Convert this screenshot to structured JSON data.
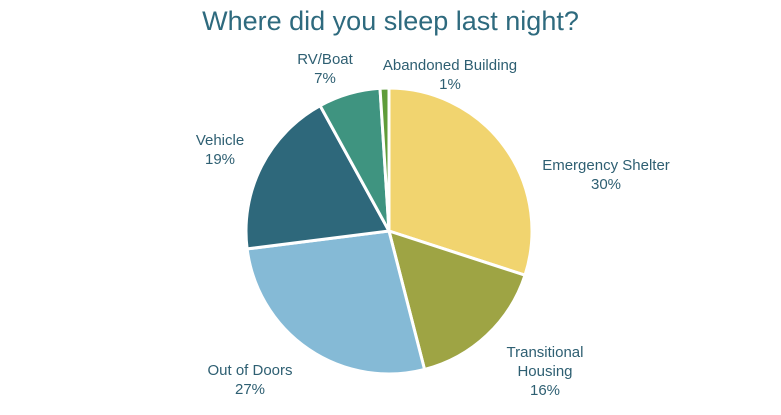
{
  "chart_data": {
    "type": "pie",
    "title": "Where did you sleep last night?",
    "slices": [
      {
        "label": [
          "Emergency Shelter"
        ],
        "pct_label": "30%",
        "value": 30,
        "color": "#f1d46f"
      },
      {
        "label": [
          "Transitional",
          "Housing"
        ],
        "pct_label": "16%",
        "value": 16,
        "color": "#9ea444"
      },
      {
        "label": [
          "Out of Doors"
        ],
        "pct_label": "27%",
        "value": 27,
        "color": "#85bad6"
      },
      {
        "label": [
          "Vehicle"
        ],
        "pct_label": "19%",
        "value": 19,
        "color": "#2e687b"
      },
      {
        "label": [
          "RV/Boat"
        ],
        "pct_label": "7%",
        "value": 7,
        "color": "#3f9480"
      },
      {
        "label": [
          "Abandoned Building"
        ],
        "pct_label": "1%",
        "value": 1,
        "color": "#5f9c3a"
      }
    ],
    "start_angle_deg": 0,
    "direction": "clockwise",
    "legend": "none",
    "data_labels": "outside"
  }
}
